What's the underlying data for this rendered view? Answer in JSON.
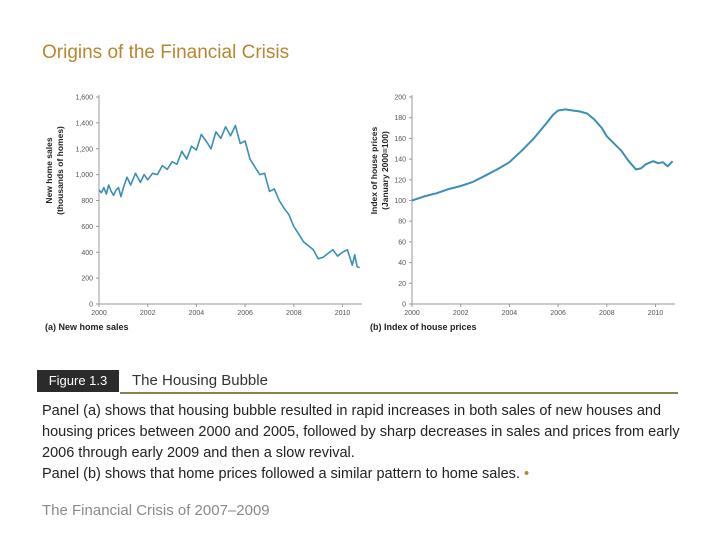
{
  "slide": {
    "title": "Origins of the Financial Crisis",
    "figure_label": "Figure 1.3",
    "figure_title": "The Housing Bubble",
    "caption_main": "Panel (a) shows that housing bubble resulted in rapid increases in both sales of new houses and housing prices between 2000 and 2005, followed by sharp decreases in sales and prices from early 2006 through early 2009 and then a slow revival.",
    "caption_b": "Panel (b) shows that home prices followed a similar pattern to home sales.",
    "caption_bullet": "•",
    "footer": "The Financial Crisis of 2007–2009"
  },
  "colors": {
    "line": "#3a8fb7",
    "axis": "#999999",
    "accent": "#b8862f"
  },
  "chart_data": [
    {
      "type": "line",
      "panel_label": "(a) New home sales",
      "ylabel": "New home sales (thousands of homes)",
      "ylabel_line1": "New home sales",
      "ylabel_line2": "(thousands of homes)",
      "xlim": [
        2000,
        2010.8
      ],
      "ylim": [
        0,
        1600
      ],
      "x_ticks": [
        2000,
        2002,
        2004,
        2006,
        2008,
        2010
      ],
      "y_ticks": [
        0,
        200,
        400,
        600,
        800,
        1000,
        1200,
        1400,
        1600
      ],
      "x_tick_labels": [
        "2000",
        "2002",
        "2004",
        "2006",
        "2008",
        "2010"
      ],
      "y_tick_labels": [
        "0",
        "200",
        "400",
        "600",
        "800",
        "1,000",
        "1,200",
        "1,400",
        "1,600"
      ],
      "series": [
        {
          "name": "New home sales",
          "x": [
            2000.0,
            2000.1,
            2000.2,
            2000.3,
            2000.4,
            2000.5,
            2000.6,
            2000.7,
            2000.8,
            2000.9,
            2001.0,
            2001.15,
            2001.3,
            2001.5,
            2001.7,
            2001.85,
            2002.0,
            2002.2,
            2002.4,
            2002.6,
            2002.8,
            2003.0,
            2003.2,
            2003.4,
            2003.6,
            2003.8,
            2004.0,
            2004.2,
            2004.4,
            2004.6,
            2004.8,
            2005.0,
            2005.2,
            2005.4,
            2005.6,
            2005.8,
            2006.0,
            2006.2,
            2006.4,
            2006.6,
            2006.8,
            2007.0,
            2007.2,
            2007.4,
            2007.6,
            2007.8,
            2008.0,
            2008.2,
            2008.4,
            2008.6,
            2008.8,
            2009.0,
            2009.2,
            2009.4,
            2009.6,
            2009.8,
            2010.0,
            2010.2,
            2010.4,
            2010.5,
            2010.6,
            2010.7
          ],
          "y": [
            880,
            860,
            900,
            850,
            920,
            870,
            840,
            880,
            900,
            830,
            900,
            980,
            920,
            1010,
            940,
            1000,
            960,
            1010,
            1000,
            1070,
            1040,
            1100,
            1080,
            1180,
            1120,
            1220,
            1190,
            1310,
            1260,
            1200,
            1330,
            1280,
            1370,
            1300,
            1380,
            1240,
            1260,
            1120,
            1060,
            1000,
            1010,
            870,
            890,
            800,
            740,
            690,
            600,
            540,
            480,
            450,
            420,
            350,
            360,
            390,
            420,
            370,
            400,
            420,
            300,
            380,
            290,
            280
          ]
        }
      ]
    },
    {
      "type": "line",
      "panel_label": "(b) Index of house prices",
      "ylabel": "Index of house prices (January 2000=100)",
      "ylabel_line1": "Index of house prices",
      "ylabel_line2": "(January 2000=100)",
      "xlim": [
        2000,
        2010.8
      ],
      "ylim": [
        0,
        200
      ],
      "x_ticks": [
        2000,
        2002,
        2004,
        2006,
        2008,
        2010
      ],
      "y_ticks": [
        0,
        20,
        40,
        60,
        80,
        100,
        120,
        140,
        160,
        180,
        200
      ],
      "x_tick_labels": [
        "2000",
        "2002",
        "2004",
        "2006",
        "2008",
        "2010"
      ],
      "y_tick_labels": [
        "0",
        "20",
        "40",
        "60",
        "80",
        "100",
        "120",
        "140",
        "160",
        "180",
        "200"
      ],
      "series": [
        {
          "name": "Index of house prices",
          "x": [
            2000.0,
            2000.5,
            2001.0,
            2001.5,
            2002.0,
            2002.5,
            2003.0,
            2003.5,
            2004.0,
            2004.5,
            2005.0,
            2005.5,
            2005.8,
            2006.0,
            2006.3,
            2006.6,
            2006.9,
            2007.2,
            2007.5,
            2007.8,
            2008.0,
            2008.3,
            2008.6,
            2008.9,
            2009.2,
            2009.4,
            2009.6,
            2009.9,
            2010.1,
            2010.3,
            2010.5,
            2010.7
          ],
          "y": [
            100,
            104,
            107,
            111,
            114,
            118,
            124,
            130,
            137,
            148,
            160,
            174,
            183,
            187,
            188,
            187,
            186,
            184,
            178,
            170,
            162,
            155,
            148,
            138,
            130,
            131,
            135,
            138,
            136,
            137,
            133,
            138
          ]
        }
      ]
    }
  ]
}
